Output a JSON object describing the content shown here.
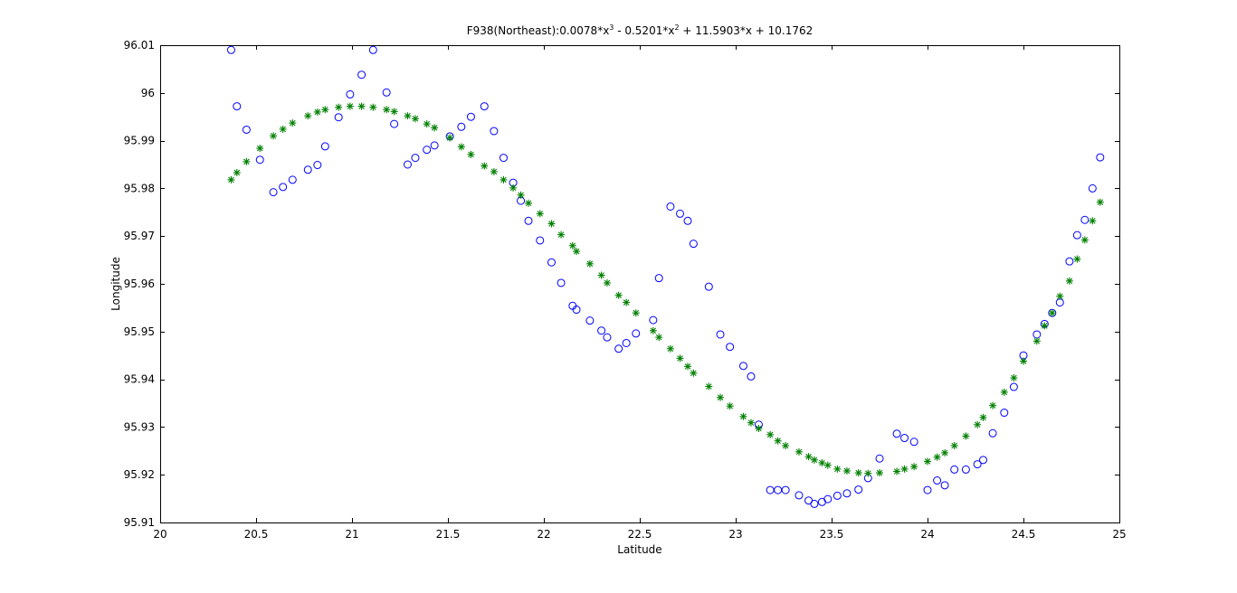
{
  "chart_data": {
    "type": "scatter",
    "title_main": "F938(Northeast):0.0078*x",
    "title_sup1": "3",
    "title_mid": " - 0.5201*x",
    "title_sup2": "2",
    "title_tail": " + 11.5903*x  + 10.1762",
    "xlabel": "Latitude",
    "ylabel": "Longitude",
    "xlim": [
      20,
      25
    ],
    "ylim": [
      95.91,
      96.01
    ],
    "xticks": [
      20,
      20.5,
      21,
      21.5,
      22,
      22.5,
      23,
      23.5,
      24,
      24.5,
      25
    ],
    "xtick_labels": [
      "20",
      "20.5",
      "21",
      "21.5",
      "22",
      "22.5",
      "23",
      "23.5",
      "24",
      "24.5",
      "25"
    ],
    "yticks": [
      95.91,
      95.92,
      95.93,
      95.94,
      95.95,
      95.96,
      95.97,
      95.98,
      95.99,
      96,
      96.01
    ],
    "ytick_labels": [
      "95.91",
      "95.92",
      "95.93",
      "95.94",
      "95.95",
      "95.96",
      "95.97",
      "95.98",
      "95.99",
      "96",
      "96.01"
    ],
    "grid": false,
    "colors": {
      "observed": "#0000ff",
      "fitted": "#008000",
      "axes": "#000000"
    },
    "series": [
      {
        "marker": "circle",
        "color": "#0000ff",
        "points": [
          [
            20.37,
            96.009
          ],
          [
            20.4,
            95.9972
          ],
          [
            20.45,
            95.9923
          ],
          [
            20.52,
            95.986
          ],
          [
            20.59,
            95.9792
          ],
          [
            20.64,
            95.9803
          ],
          [
            20.69,
            95.9818
          ],
          [
            20.77,
            95.9839
          ],
          [
            20.82,
            95.9849
          ],
          [
            20.86,
            95.9888
          ],
          [
            20.93,
            95.9949
          ],
          [
            20.99,
            95.9997
          ],
          [
            21.05,
            96.0038
          ],
          [
            21.11,
            96.009
          ],
          [
            21.18,
            96.0001
          ],
          [
            21.22,
            95.9935
          ],
          [
            21.29,
            95.985
          ],
          [
            21.33,
            95.9864
          ],
          [
            21.39,
            95.9881
          ],
          [
            21.43,
            95.989
          ],
          [
            21.51,
            95.9909
          ],
          [
            21.57,
            95.9929
          ],
          [
            21.62,
            95.995
          ],
          [
            21.69,
            95.9972
          ],
          [
            21.74,
            95.992
          ],
          [
            21.79,
            95.9864
          ],
          [
            21.84,
            95.9812
          ],
          [
            21.88,
            95.9774
          ],
          [
            21.92,
            95.9732
          ],
          [
            21.98,
            95.9691
          ],
          [
            22.04,
            95.9645
          ],
          [
            22.09,
            95.9602
          ],
          [
            22.15,
            95.9554
          ],
          [
            22.17,
            95.9546
          ],
          [
            22.24,
            95.9523
          ],
          [
            22.3,
            95.9502
          ],
          [
            22.33,
            95.9488
          ],
          [
            22.39,
            95.9464
          ],
          [
            22.43,
            95.9476
          ],
          [
            22.48,
            95.9496
          ],
          [
            22.57,
            95.9524
          ],
          [
            22.6,
            95.9612
          ],
          [
            22.66,
            95.9762
          ],
          [
            22.71,
            95.9747
          ],
          [
            22.75,
            95.9732
          ],
          [
            22.78,
            95.9684
          ],
          [
            22.86,
            95.9594
          ],
          [
            22.92,
            95.9494
          ],
          [
            22.97,
            95.9468
          ],
          [
            23.04,
            95.9428
          ],
          [
            23.08,
            95.9406
          ],
          [
            23.12,
            95.9305
          ],
          [
            23.18,
            95.9168
          ],
          [
            23.22,
            95.9168
          ],
          [
            23.26,
            95.9168
          ],
          [
            23.33,
            95.9157
          ],
          [
            23.38,
            95.9146
          ],
          [
            23.41,
            95.9139
          ],
          [
            23.45,
            95.9143
          ],
          [
            23.48,
            95.9149
          ],
          [
            23.53,
            95.9156
          ],
          [
            23.58,
            95.9161
          ],
          [
            23.64,
            95.9169
          ],
          [
            23.69,
            95.9193
          ],
          [
            23.75,
            95.9234
          ],
          [
            23.84,
            95.9286
          ],
          [
            23.88,
            95.9277
          ],
          [
            23.93,
            95.9269
          ],
          [
            24.0,
            95.9168
          ],
          [
            24.05,
            95.9188
          ],
          [
            24.09,
            95.9178
          ],
          [
            24.14,
            95.9211
          ],
          [
            24.2,
            95.9211
          ],
          [
            24.26,
            95.9222
          ],
          [
            24.29,
            95.9231
          ],
          [
            24.34,
            95.9287
          ],
          [
            24.4,
            95.933
          ],
          [
            24.45,
            95.9384
          ],
          [
            24.5,
            95.945
          ],
          [
            24.57,
            95.9494
          ],
          [
            24.61,
            95.9516
          ],
          [
            24.65,
            95.9539
          ],
          [
            24.69,
            95.9561
          ],
          [
            24.74,
            95.9647
          ],
          [
            24.78,
            95.9702
          ],
          [
            24.82,
            95.9734
          ],
          [
            24.86,
            95.98
          ],
          [
            24.9,
            95.9865
          ]
        ]
      },
      {
        "marker": "asterisk",
        "color": "#008000",
        "points": [
          [
            20.37,
            95.9818
          ],
          [
            20.4,
            95.9833
          ],
          [
            20.45,
            95.9856
          ],
          [
            20.52,
            95.9884
          ],
          [
            20.59,
            95.991
          ],
          [
            20.64,
            95.9924
          ],
          [
            20.69,
            95.9937
          ],
          [
            20.77,
            95.9952
          ],
          [
            20.82,
            95.996
          ],
          [
            20.86,
            95.9965
          ],
          [
            20.93,
            95.997
          ],
          [
            20.99,
            95.9972
          ],
          [
            21.05,
            95.9972
          ],
          [
            21.11,
            95.997
          ],
          [
            21.18,
            95.9965
          ],
          [
            21.22,
            95.9961
          ],
          [
            21.29,
            95.9952
          ],
          [
            21.33,
            95.9946
          ],
          [
            21.39,
            95.9935
          ],
          [
            21.43,
            95.9927
          ],
          [
            21.51,
            95.9906
          ],
          [
            21.57,
            95.9887
          ],
          [
            21.62,
            95.9871
          ],
          [
            21.69,
            95.9847
          ],
          [
            21.74,
            95.9835
          ],
          [
            21.79,
            95.9818
          ],
          [
            21.84,
            95.9801
          ],
          [
            21.88,
            95.9786
          ],
          [
            21.92,
            95.9769
          ],
          [
            21.98,
            95.9747
          ],
          [
            22.04,
            95.9726
          ],
          [
            22.09,
            95.9703
          ],
          [
            22.15,
            95.968
          ],
          [
            22.17,
            95.9668
          ],
          [
            22.24,
            95.9642
          ],
          [
            22.3,
            95.9618
          ],
          [
            22.33,
            95.9602
          ],
          [
            22.39,
            95.9576
          ],
          [
            22.43,
            95.9561
          ],
          [
            22.48,
            95.9539
          ],
          [
            22.57,
            95.9502
          ],
          [
            22.6,
            95.9488
          ],
          [
            22.66,
            95.9464
          ],
          [
            22.71,
            95.9444
          ],
          [
            22.75,
            95.9427
          ],
          [
            22.78,
            95.9413
          ],
          [
            22.86,
            95.9385
          ],
          [
            22.92,
            95.9362
          ],
          [
            22.97,
            95.9344
          ],
          [
            23.04,
            95.9322
          ],
          [
            23.08,
            95.9309
          ],
          [
            23.12,
            95.9297
          ],
          [
            23.18,
            95.9284
          ],
          [
            23.22,
            95.9271
          ],
          [
            23.26,
            95.9261
          ],
          [
            23.33,
            95.9248
          ],
          [
            23.38,
            95.9238
          ],
          [
            23.41,
            95.9231
          ],
          [
            23.45,
            95.9225
          ],
          [
            23.48,
            95.922
          ],
          [
            23.53,
            95.9212
          ],
          [
            23.58,
            95.9208
          ],
          [
            23.64,
            95.9204
          ],
          [
            23.69,
            95.9203
          ],
          [
            23.75,
            95.9204
          ],
          [
            23.84,
            95.9207
          ],
          [
            23.88,
            95.9212
          ],
          [
            23.93,
            95.9217
          ],
          [
            24.0,
            95.9228
          ],
          [
            24.05,
            95.9237
          ],
          [
            24.09,
            95.9246
          ],
          [
            24.14,
            95.9261
          ],
          [
            24.2,
            95.9281
          ],
          [
            24.26,
            95.9305
          ],
          [
            24.29,
            95.932
          ],
          [
            24.34,
            95.9345
          ],
          [
            24.4,
            95.9373
          ],
          [
            24.45,
            95.9403
          ],
          [
            24.5,
            95.9438
          ],
          [
            24.57,
            95.948
          ],
          [
            24.61,
            95.9512
          ],
          [
            24.65,
            95.9539
          ],
          [
            24.69,
            95.9574
          ],
          [
            24.74,
            95.9606
          ],
          [
            24.78,
            95.9652
          ],
          [
            24.82,
            95.9692
          ],
          [
            24.86,
            95.9732
          ],
          [
            24.9,
            95.9771
          ]
        ]
      }
    ]
  }
}
